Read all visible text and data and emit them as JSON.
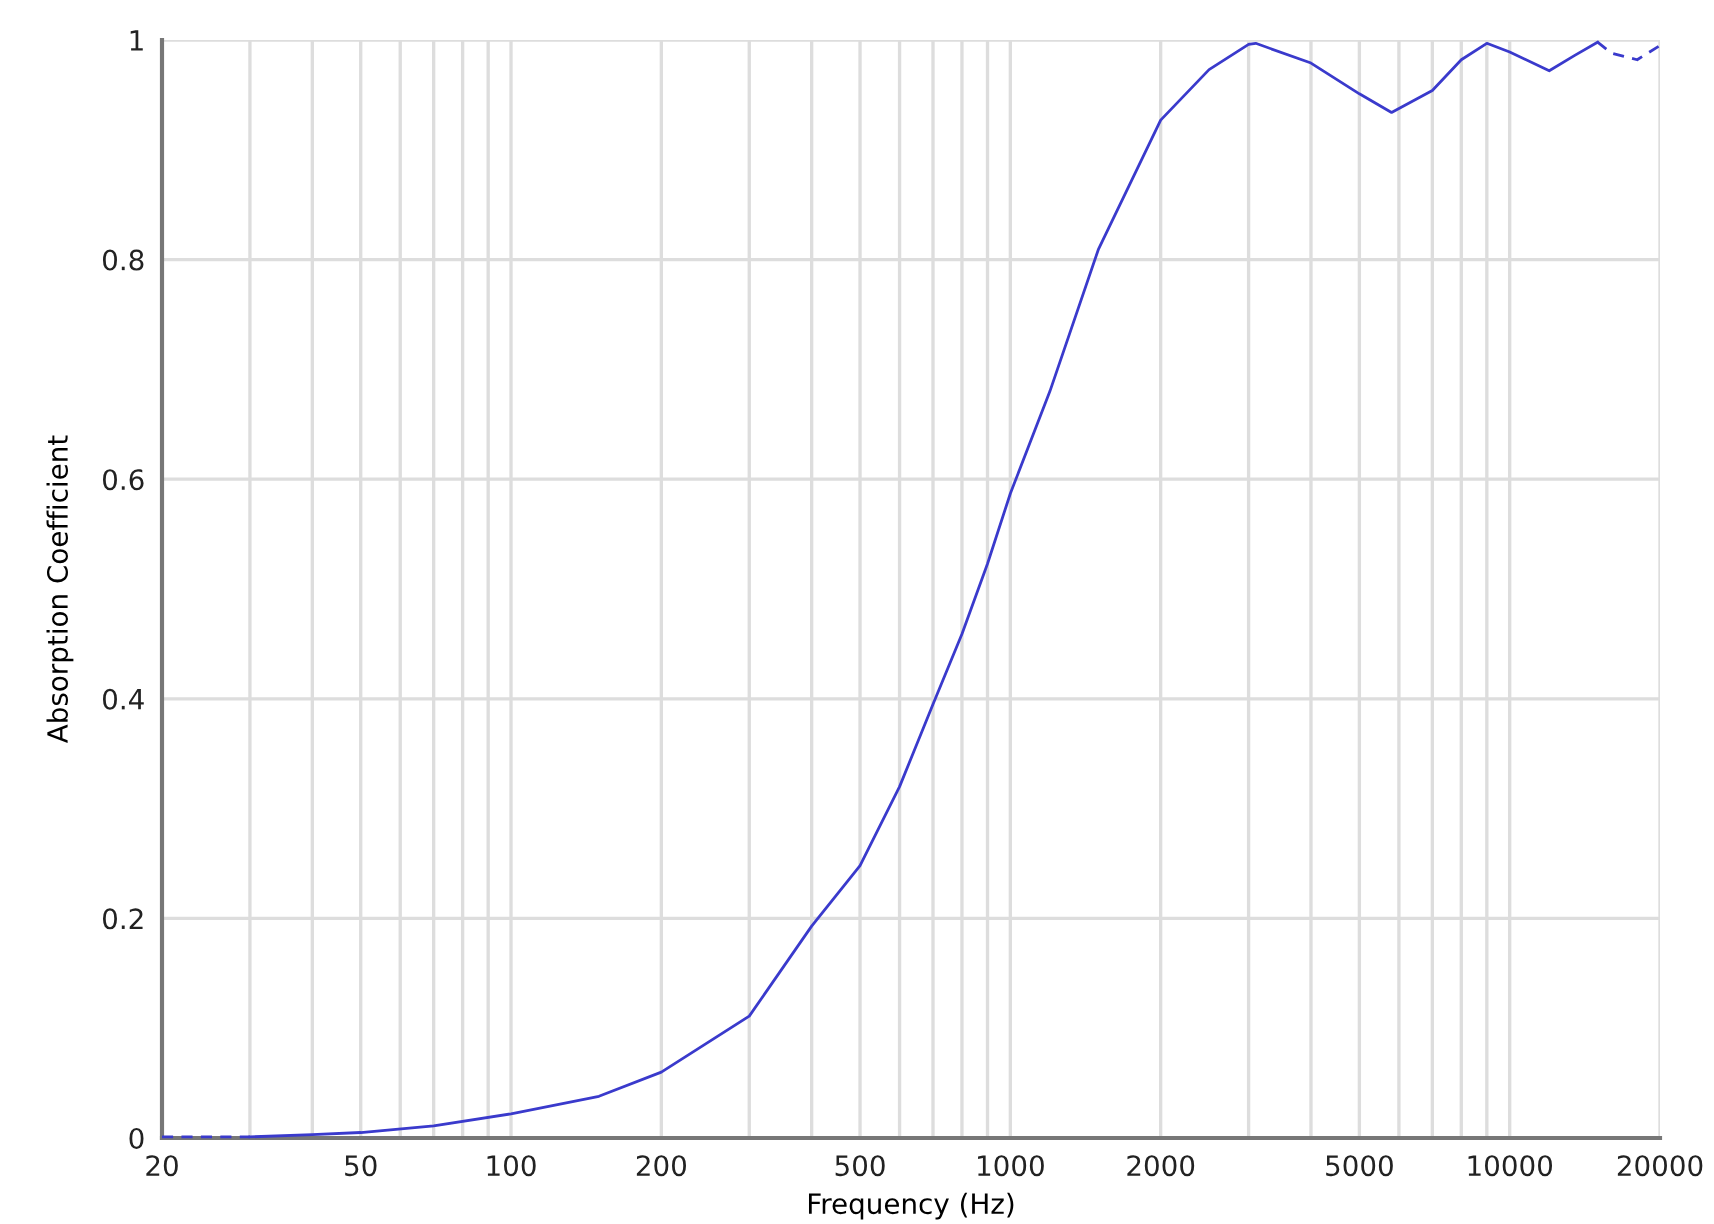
{
  "chart_data": {
    "type": "line",
    "xlabel": "Frequency (Hz)",
    "ylabel": "Absorption Coefficient",
    "log": "x",
    "series": [
      {
        "color": "#3a3acc",
        "line_style": "dashed",
        "x": [
          20,
          25,
          30
        ],
        "values": [
          0.001,
          0.001,
          0.001
        ]
      },
      {
        "color": "#3a3acc",
        "line_style": "solid",
        "x": [
          30,
          40,
          50,
          70,
          100,
          150,
          200,
          300,
          400,
          500,
          600,
          700,
          800,
          900,
          1000,
          1200,
          1500,
          2000,
          2500,
          3000,
          3100,
          4000,
          5000,
          5800,
          7000,
          8000,
          9000,
          10000,
          12000,
          13500,
          15000
        ],
        "values": [
          0.001,
          0.003,
          0.005,
          0.011,
          0.022,
          0.038,
          0.06,
          0.111,
          0.193,
          0.248,
          0.32,
          0.395,
          0.459,
          0.523,
          0.587,
          0.68,
          0.809,
          0.927,
          0.973,
          0.996,
          0.997,
          0.979,
          0.951,
          0.934,
          0.954,
          0.982,
          0.997,
          0.989,
          0.972,
          0.986,
          0.998
        ]
      },
      {
        "color": "#3a3acc",
        "line_style": "dashed",
        "x": [
          15000,
          16000,
          18000,
          20000
        ],
        "values": [
          0.998,
          0.988,
          0.982,
          0.995
        ]
      }
    ],
    "xlim": [
      20,
      20000
    ],
    "ylim": [
      0,
      1
    ],
    "xticks": [
      20,
      {
        "value": 30,
        "label": null
      },
      {
        "value": 40,
        "label": null
      },
      50,
      {
        "value": 60,
        "label": null
      },
      {
        "value": 70,
        "label": null
      },
      {
        "value": 80,
        "label": null
      },
      {
        "value": 90,
        "label": null
      },
      100,
      200,
      {
        "value": 300,
        "label": null
      },
      {
        "value": 400,
        "label": null
      },
      500,
      {
        "value": 600,
        "label": null
      },
      {
        "value": 700,
        "label": null
      },
      {
        "value": 800,
        "label": null
      },
      {
        "value": 900,
        "label": null
      },
      1000,
      2000,
      {
        "value": 3000,
        "label": null
      },
      {
        "value": 4000,
        "label": null
      },
      5000,
      {
        "value": 6000,
        "label": null
      },
      {
        "value": 7000,
        "label": null
      },
      {
        "value": 8000,
        "label": null
      },
      {
        "value": 9000,
        "label": null
      },
      10000,
      20000
    ],
    "yticks": [
      0,
      0.2,
      0.4,
      0.6,
      0.8,
      1
    ],
    "grid": true
  }
}
